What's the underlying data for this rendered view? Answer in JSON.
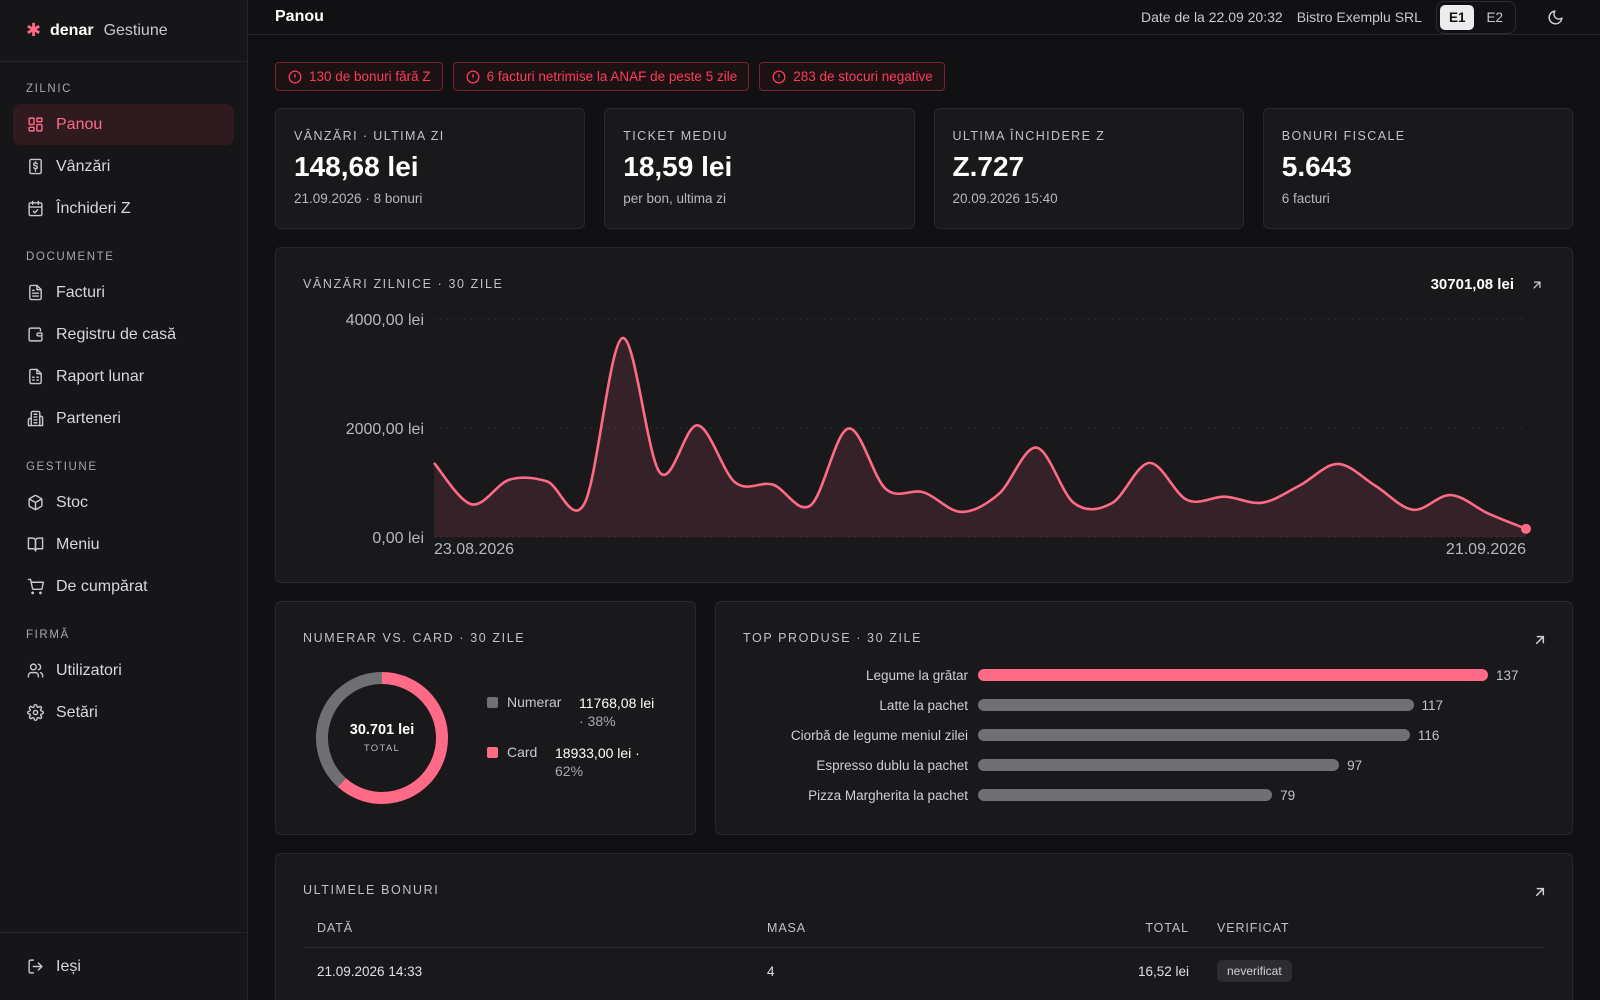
{
  "brand": {
    "name": "denar",
    "sub": "Gestiune"
  },
  "sidebar": {
    "sections": [
      {
        "title": "ZILNIC",
        "items": [
          {
            "label": "Panou",
            "icon": "dashboard-icon",
            "active": true
          },
          {
            "label": "Vânzări",
            "icon": "receipt-dollar-icon"
          },
          {
            "label": "Închideri Z",
            "icon": "calendar-check-icon"
          }
        ]
      },
      {
        "title": "DOCUMENTE",
        "items": [
          {
            "label": "Facturi",
            "icon": "document-icon"
          },
          {
            "label": "Registru de casă",
            "icon": "wallet-icon"
          },
          {
            "label": "Raport lunar",
            "icon": "report-icon"
          },
          {
            "label": "Parteneri",
            "icon": "building-icon"
          }
        ]
      },
      {
        "title": "GESTIUNE",
        "items": [
          {
            "label": "Stoc",
            "icon": "box-icon"
          },
          {
            "label": "Meniu",
            "icon": "book-icon"
          },
          {
            "label": "De cumpărat",
            "icon": "cart-icon"
          }
        ]
      },
      {
        "title": "FIRMĂ",
        "items": [
          {
            "label": "Utilizatori",
            "icon": "users-icon"
          },
          {
            "label": "Setări",
            "icon": "gear-icon"
          }
        ]
      }
    ],
    "logout": "Ieși"
  },
  "header": {
    "title": "Panou",
    "data_date": "Date de la 22.09 20:32",
    "company": "Bistro Exemplu SRL",
    "env_options": [
      "E1",
      "E2"
    ],
    "env_selected": "E1"
  },
  "alerts": [
    "130 de bonuri fără Z",
    "6 facturi netrimise la ANAF de peste 5 zile",
    "283 de stocuri negative"
  ],
  "kpis": [
    {
      "label": "VÂNZĂRI · ULTIMA ZI",
      "value": "148,68 lei",
      "sub": "21.09.2026 · 8 bonuri"
    },
    {
      "label": "TICKET MEDIU",
      "value": "18,59 lei",
      "sub": "per bon, ultima zi"
    },
    {
      "label": "ULTIMA ÎNCHIDERE Z",
      "value": "Z.727",
      "sub": "20.09.2026 15:40"
    },
    {
      "label": "BONURI FISCALE",
      "value": "5.643",
      "sub": "6 facturi"
    }
  ],
  "colors": {
    "accent": "#ff6b86",
    "neutral": "#6f6f74",
    "alert": "#ff3b5c"
  },
  "chart_data": [
    {
      "type": "area",
      "title": "VÂNZĂRI ZILNICE · 30 ZILE",
      "total_label": "30701,08 lei",
      "ylim": [
        0,
        4000
      ],
      "y_ticks": [
        "0,00 lei",
        "2000,00 lei",
        "4000,00 lei"
      ],
      "y_tick_values": [
        0,
        2000,
        4000
      ],
      "x_ticks": [
        "23.08.2026",
        "21.09.2026"
      ],
      "grid": true,
      "values": [
        1360,
        600,
        1050,
        1020,
        620,
        3650,
        1180,
        2050,
        1000,
        960,
        580,
        1990,
        880,
        820,
        460,
        790,
        1640,
        620,
        620,
        1360,
        680,
        740,
        630,
        950,
        1340,
        940,
        500,
        770,
        430,
        150
      ]
    },
    {
      "type": "pie",
      "title": "NUMERAR VS. CARD · 30 ZILE",
      "total_label": "30.701 lei",
      "total_caption": "TOTAL",
      "slices": [
        {
          "name": "Numerar",
          "value": 11768.08,
          "label": "11768,08 lei",
          "pct": "· 38%",
          "color": "#6f6f74"
        },
        {
          "name": "Card",
          "value": 18933.0,
          "label": "18933,00 lei ·",
          "pct": "62%",
          "color": "#ff6b86"
        }
      ]
    },
    {
      "type": "bar",
      "title": "TOP PRODUSE · 30 ZILE",
      "categories": [
        "Legume la grătar",
        "Latte la pachet",
        "Ciorbă de legume meniul zilei",
        "Espresso dublu la pachet",
        "Pizza Margherita la pachet"
      ],
      "values": [
        137,
        117,
        116,
        97,
        79
      ]
    }
  ],
  "receipts": {
    "title": "ULTIMELE BONURI",
    "columns": [
      "DATĂ",
      "MASA",
      "TOTAL",
      "VERIFICAT"
    ],
    "rows": [
      {
        "date": "21.09.2026 14:33",
        "table": "4",
        "total": "16,52 lei",
        "verified": "neverificat"
      }
    ]
  }
}
